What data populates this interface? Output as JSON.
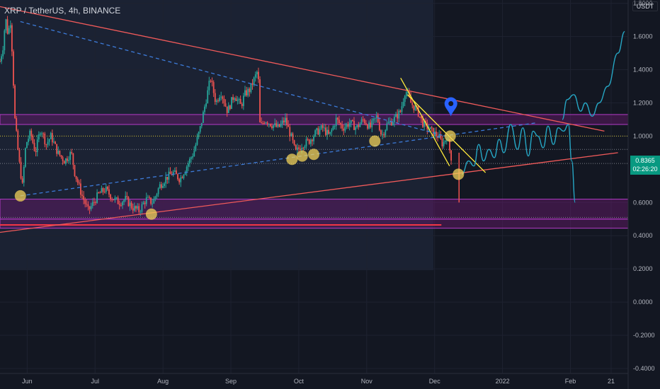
{
  "header": {
    "title": "XRP / TetherUS, 4h, BINANCE",
    "currency": "USDT"
  },
  "last_price": {
    "value": "0.8365",
    "countdown": "02:26:20",
    "color": "#089981"
  },
  "colors": {
    "background": "#131722",
    "up_candle": "#26a69a",
    "down_candle": "#ef5350",
    "trendline": "#f05a5a",
    "wedge_line": "#ffeb3b",
    "dashed_trend": "#3d7bd9",
    "zone_fill": "#6a1b6e",
    "zone_border": "#b33bc7",
    "prediction": "#26a6c4",
    "pivot_marker": "#f2d15a",
    "pin": "#2962ff"
  },
  "chart_data": {
    "type": "candlestick",
    "title": "XRP / TetherUS, 4h, BINANCE",
    "y_ticks": [
      1.8,
      1.6,
      1.4,
      1.2,
      1.0,
      0.6,
      0.4,
      0.2,
      0.0,
      -0.2,
      -0.4
    ],
    "y_tick_labels": [
      "1.8000",
      "1.6000",
      "1.4000",
      "1.2000",
      "1.0000",
      "0.6000",
      "0.4000",
      "0.2000",
      "0.0000",
      "-0.2000",
      "-0.4000"
    ],
    "x_ticks": [
      {
        "t": 0.4,
        "label": "Jun"
      },
      {
        "t": 1.4,
        "label": "Jul"
      },
      {
        "t": 2.4,
        "label": "Aug"
      },
      {
        "t": 3.4,
        "label": "Sep"
      },
      {
        "t": 4.4,
        "label": "Oct"
      },
      {
        "t": 5.4,
        "label": "Nov"
      },
      {
        "t": 6.4,
        "label": "Dec"
      },
      {
        "t": 7.4,
        "label": "2022"
      },
      {
        "t": 8.4,
        "label": "Feb"
      },
      {
        "t": 9.0,
        "label": "21"
      }
    ],
    "ylim": [
      -0.43,
      1.82
    ],
    "xlim": [
      0.0,
      9.25
    ],
    "price_path": [
      [
        0.0,
        1.45
      ],
      [
        0.05,
        1.55
      ],
      [
        0.08,
        1.72
      ],
      [
        0.12,
        1.6
      ],
      [
        0.15,
        1.72
      ],
      [
        0.18,
        1.5
      ],
      [
        0.22,
        1.1
      ],
      [
        0.28,
        0.85
      ],
      [
        0.33,
        0.7
      ],
      [
        0.38,
        0.95
      ],
      [
        0.45,
        1.02
      ],
      [
        0.52,
        0.9
      ],
      [
        0.6,
        1.05
      ],
      [
        0.68,
        0.95
      ],
      [
        0.75,
        1.0
      ],
      [
        0.85,
        0.9
      ],
      [
        0.95,
        0.85
      ],
      [
        1.05,
        0.9
      ],
      [
        1.1,
        0.78
      ],
      [
        1.2,
        0.65
      ],
      [
        1.3,
        0.55
      ],
      [
        1.38,
        0.6
      ],
      [
        1.45,
        0.65
      ],
      [
        1.55,
        0.68
      ],
      [
        1.65,
        0.63
      ],
      [
        1.75,
        0.6
      ],
      [
        1.85,
        0.62
      ],
      [
        1.95,
        0.57
      ],
      [
        2.05,
        0.55
      ],
      [
        2.15,
        0.62
      ],
      [
        2.25,
        0.6
      ],
      [
        2.35,
        0.7
      ],
      [
        2.45,
        0.75
      ],
      [
        2.55,
        0.78
      ],
      [
        2.65,
        0.74
      ],
      [
        2.75,
        0.82
      ],
      [
        2.85,
        0.9
      ],
      [
        2.95,
        1.05
      ],
      [
        3.05,
        1.25
      ],
      [
        3.1,
        1.35
      ],
      [
        3.18,
        1.2
      ],
      [
        3.25,
        1.27
      ],
      [
        3.35,
        1.15
      ],
      [
        3.45,
        1.25
      ],
      [
        3.55,
        1.18
      ],
      [
        3.6,
        1.25
      ],
      [
        3.68,
        1.28
      ],
      [
        3.75,
        1.35
      ],
      [
        3.8,
        1.4
      ],
      [
        3.83,
        1.05
      ],
      [
        3.9,
        1.1
      ],
      [
        4.0,
        1.07
      ],
      [
        4.1,
        1.05
      ],
      [
        4.2,
        1.1
      ],
      [
        4.3,
        0.98
      ],
      [
        4.35,
        0.9
      ],
      [
        4.45,
        0.95
      ],
      [
        4.55,
        0.97
      ],
      [
        4.65,
        1.02
      ],
      [
        4.75,
        1.05
      ],
      [
        4.85,
        1.0
      ],
      [
        4.95,
        1.1
      ],
      [
        5.05,
        1.05
      ],
      [
        5.15,
        1.08
      ],
      [
        5.25,
        1.05
      ],
      [
        5.35,
        1.1
      ],
      [
        5.45,
        1.05
      ],
      [
        5.55,
        1.12
      ],
      [
        5.62,
        1.0
      ],
      [
        5.7,
        1.07
      ],
      [
        5.8,
        1.1
      ],
      [
        5.9,
        1.15
      ],
      [
        5.97,
        1.28
      ],
      [
        6.05,
        1.2
      ],
      [
        6.15,
        1.15
      ],
      [
        6.22,
        1.08
      ],
      [
        6.3,
        1.05
      ],
      [
        6.38,
        1.02
      ],
      [
        6.45,
        1.0
      ],
      [
        6.52,
        0.95
      ],
      [
        6.58,
        1.0
      ],
      [
        6.63,
        0.9
      ],
      [
        6.66,
        0.84
      ]
    ],
    "zones": [
      {
        "from": 1.07,
        "to": 1.13
      },
      {
        "from": 0.5,
        "to": 0.62
      },
      {
        "from": 0.445,
        "to": 0.5
      }
    ],
    "horizontal_lines": [
      {
        "y": 0.465,
        "color": "#f23645",
        "x_end": 6.5
      },
      {
        "y": 1.0,
        "color": "#ffeb3b",
        "dotted": true
      },
      {
        "y": 0.835,
        "color": "#9598a1",
        "dotted": true
      },
      {
        "y": 0.92,
        "color": "#9598a1",
        "dotted": true
      },
      {
        "y": 0.51,
        "color": "#9598a1",
        "dotted": true
      }
    ],
    "trendlines": [
      {
        "from": [
          0.0,
          1.78
        ],
        "to": [
          8.9,
          1.03
        ],
        "color": "#f05a5a"
      },
      {
        "from": [
          0.0,
          0.42
        ],
        "to": [
          9.1,
          0.9
        ],
        "color": "#f05a5a"
      },
      {
        "from": [
          0.3,
          1.69
        ],
        "to": [
          6.56,
          1.0
        ],
        "color": "#3d7bd9",
        "dashed": true
      },
      {
        "from": [
          0.3,
          0.64
        ],
        "to": [
          7.9,
          1.08
        ],
        "color": "#3d7bd9",
        "dashed": true
      },
      {
        "from": [
          5.9,
          1.35
        ],
        "to": [
          6.62,
          0.82
        ],
        "color": "#ffeb3b"
      },
      {
        "from": [
          6.0,
          1.25
        ],
        "to": [
          7.15,
          0.78
        ],
        "color": "#ffeb3b"
      }
    ],
    "pivots": [
      [
        0.3,
        0.64
      ],
      [
        2.23,
        0.53
      ],
      [
        4.3,
        0.86
      ],
      [
        4.45,
        0.88
      ],
      [
        4.62,
        0.89
      ],
      [
        5.52,
        0.97
      ],
      [
        6.63,
        1.0
      ],
      [
        6.75,
        0.77
      ]
    ],
    "pin": [
      6.64,
      1.17
    ],
    "wick": {
      "x": 6.76,
      "top": 0.9,
      "bottom": 0.6
    },
    "prediction_path": [
      [
        6.8,
        0.77
      ],
      [
        6.9,
        0.85
      ],
      [
        6.98,
        0.82
      ],
      [
        7.05,
        0.95
      ],
      [
        7.12,
        0.85
      ],
      [
        7.2,
        0.92
      ],
      [
        7.28,
        0.87
      ],
      [
        7.35,
        0.98
      ],
      [
        7.42,
        0.9
      ],
      [
        7.52,
        1.07
      ],
      [
        7.62,
        0.92
      ],
      [
        7.7,
        1.05
      ],
      [
        7.78,
        0.88
      ],
      [
        7.85,
        1.03
      ],
      [
        7.92,
        1.0
      ],
      [
        8.0,
        0.93
      ],
      [
        8.07,
        1.06
      ],
      [
        8.15,
        0.95
      ],
      [
        8.22,
        1.05
      ],
      [
        8.3,
        1.03
      ],
      [
        8.37,
        1.07
      ],
      [
        8.42,
        0.85
      ],
      [
        8.47,
        0.6
      ]
    ],
    "projection_path": [
      [
        8.28,
        1.1
      ],
      [
        8.35,
        1.22
      ],
      [
        8.45,
        1.25
      ],
      [
        8.55,
        1.15
      ],
      [
        8.62,
        1.2
      ],
      [
        8.72,
        1.12
      ],
      [
        8.82,
        1.2
      ],
      [
        8.95,
        1.3
      ],
      [
        9.1,
        1.5
      ],
      [
        9.2,
        1.63
      ]
    ]
  }
}
